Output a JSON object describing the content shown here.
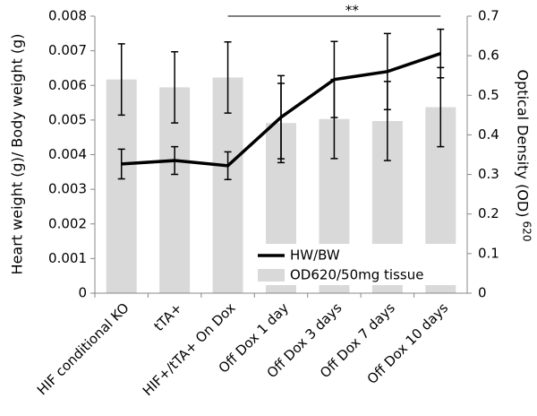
{
  "chart_data": {
    "type": "bar-line",
    "ylabel": "Heart weight (g)/ Body weight (g)",
    "y2label": "Optical Density (OD)",
    "y2label_sub": "620",
    "annotation": "**",
    "categories": [
      "HIF conditional KO",
      "tTA+",
      "HIF+/tTA+ On Dox",
      "Off Dox 1 day",
      "Off Dox 3 days",
      "Off Dox 7 days",
      "Off Dox 10 days"
    ],
    "series": [
      {
        "name": "HW/BW",
        "type": "line",
        "color": "#000000",
        "values": [
          0.00373,
          0.00383,
          0.00368,
          0.00508,
          0.00617,
          0.0064,
          0.00692
        ],
        "errors": [
          0.00043,
          0.0004,
          0.0004,
          0.0012,
          0.0011,
          0.0011,
          0.0007
        ]
      },
      {
        "name": "OD620/50mg tissue",
        "type": "bar",
        "axis": "y2",
        "color": "#d9d9d9",
        "values": [
          0.54,
          0.52,
          0.545,
          0.43,
          0.44,
          0.435,
          0.47
        ],
        "errors": [
          0.09,
          0.09,
          0.09,
          0.1,
          0.1,
          0.1,
          0.1
        ]
      }
    ],
    "ylim": [
      0,
      0.008
    ],
    "yticks": [
      0,
      0.001,
      0.002,
      0.003,
      0.004,
      0.005,
      0.006,
      0.007,
      0.008
    ],
    "y2lim": [
      0,
      0.7
    ],
    "y2ticks": [
      0,
      0.1,
      0.2,
      0.3,
      0.4,
      0.5,
      0.6,
      0.7
    ],
    "legend": "lower right"
  }
}
